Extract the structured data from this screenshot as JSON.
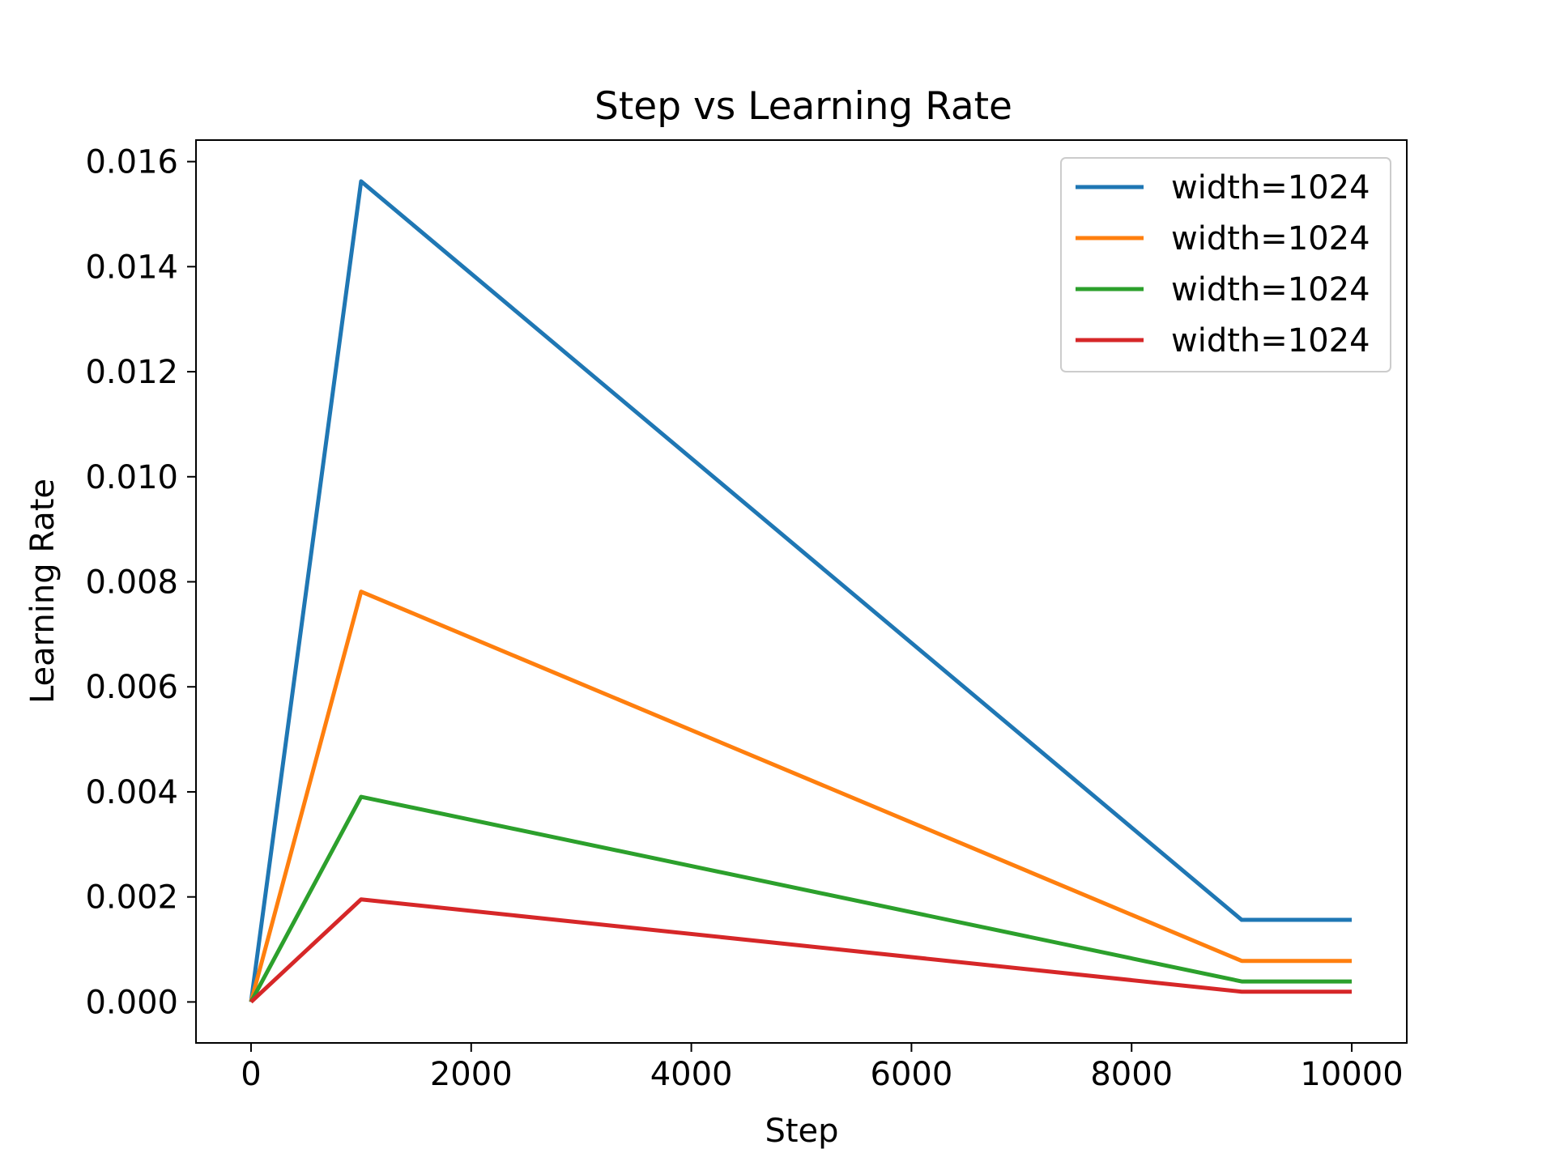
{
  "chart_data": {
    "type": "line",
    "title": "Step vs Learning Rate",
    "xlabel": "Step",
    "ylabel": "Learning Rate",
    "xlim": [
      -500,
      10500
    ],
    "ylim": [
      -0.00078,
      0.01641
    ],
    "xticks": [
      0,
      2000,
      4000,
      6000,
      8000,
      10000
    ],
    "xtick_labels": [
      "0",
      "2000",
      "4000",
      "6000",
      "8000",
      "10000"
    ],
    "yticks": [
      0.0,
      0.002,
      0.004,
      0.006,
      0.008,
      0.01,
      0.012,
      0.014,
      0.016
    ],
    "ytick_labels": [
      "0.000",
      "0.002",
      "0.004",
      "0.006",
      "0.008",
      "0.010",
      "0.012",
      "0.014",
      "0.016"
    ],
    "grid": false,
    "legend_position": "top-right",
    "x": [
      0,
      1000,
      9000,
      10000
    ],
    "series": [
      {
        "name": "width=1024",
        "color": "#1f77b4",
        "values": [
          0.0,
          0.015625,
          0.0015625,
          0.0015625
        ]
      },
      {
        "name": "width=1024",
        "color": "#ff7f0e",
        "values": [
          0.0,
          0.0078125,
          0.00078125,
          0.00078125
        ]
      },
      {
        "name": "width=1024",
        "color": "#2ca02c",
        "values": [
          0.0,
          0.00390625,
          0.000390625,
          0.000390625
        ]
      },
      {
        "name": "width=1024",
        "color": "#d62728",
        "values": [
          0.0,
          0.001953125,
          0.0001953125,
          0.0001953125
        ]
      }
    ]
  }
}
